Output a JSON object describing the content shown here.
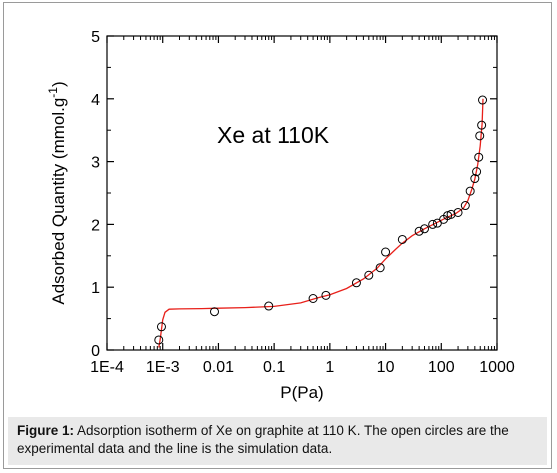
{
  "caption": {
    "label": "Figure 1:",
    "text": " Adsorption isotherm of Xe on graphite at 110 K. The open circles are the experimental data and the line is the simulation data."
  },
  "chart_data": {
    "type": "scatter",
    "x_scale": "log",
    "xlabel": "P(Pa)",
    "ylabel": "Adsorbed Quantity (mmol.g",
    "ylabel_sup": "-1",
    "ylabel_close": ")",
    "xlim": [
      0.0001,
      1000
    ],
    "ylim": [
      0,
      5
    ],
    "x_ticks": [
      {
        "value": 0.0001,
        "label": "1E-4"
      },
      {
        "value": 0.001,
        "label": "1E-3"
      },
      {
        "value": 0.01,
        "label": "0.01"
      },
      {
        "value": 0.1,
        "label": "0.1"
      },
      {
        "value": 1,
        "label": "1"
      },
      {
        "value": 10,
        "label": "10"
      },
      {
        "value": 100,
        "label": "100"
      },
      {
        "value": 1000,
        "label": "1000"
      }
    ],
    "y_ticks": [
      {
        "value": 0,
        "label": "0"
      },
      {
        "value": 1,
        "label": "1"
      },
      {
        "value": 2,
        "label": "2"
      },
      {
        "value": 3,
        "label": "3"
      },
      {
        "value": 4,
        "label": "4"
      },
      {
        "value": 5,
        "label": "5"
      }
    ],
    "annotation": "Xe at 110K",
    "grid": false,
    "series": [
      {
        "kind": "points",
        "marker": "open-circle",
        "color": "#000000",
        "points": [
          [
            0.00085,
            0.16
          ],
          [
            0.00095,
            0.37
          ],
          [
            0.0085,
            0.61
          ],
          [
            0.08,
            0.7
          ],
          [
            0.5,
            0.82
          ],
          [
            0.85,
            0.87
          ],
          [
            3.0,
            1.07
          ],
          [
            5.0,
            1.19
          ],
          [
            8.0,
            1.31
          ],
          [
            10.0,
            1.56
          ],
          [
            20.0,
            1.76
          ],
          [
            40.0,
            1.89
          ],
          [
            50.0,
            1.93
          ],
          [
            70.0,
            2.0
          ],
          [
            85.0,
            2.02
          ],
          [
            110.0,
            2.08
          ],
          [
            130.0,
            2.14
          ],
          [
            150.0,
            2.16
          ],
          [
            200.0,
            2.19
          ],
          [
            270.0,
            2.3
          ],
          [
            330.0,
            2.53
          ],
          [
            400.0,
            2.73
          ],
          [
            430.0,
            2.84
          ],
          [
            470.0,
            3.07
          ],
          [
            490.0,
            3.41
          ],
          [
            530.0,
            3.58
          ],
          [
            550.0,
            3.98
          ]
        ]
      },
      {
        "kind": "line",
        "color": "#e8201a",
        "points": [
          [
            0.00085,
            0.04
          ],
          [
            0.0009,
            0.17
          ],
          [
            0.00095,
            0.33
          ],
          [
            0.001,
            0.48
          ],
          [
            0.0011,
            0.6
          ],
          [
            0.0013,
            0.65
          ],
          [
            0.002,
            0.655
          ],
          [
            0.005,
            0.66
          ],
          [
            0.01,
            0.665
          ],
          [
            0.03,
            0.675
          ],
          [
            0.1,
            0.695
          ],
          [
            0.3,
            0.75
          ],
          [
            0.6,
            0.83
          ],
          [
            1.0,
            0.88
          ],
          [
            2.0,
            0.98
          ],
          [
            4.0,
            1.13
          ],
          [
            7.0,
            1.3
          ],
          [
            10.0,
            1.45
          ],
          [
            15.0,
            1.6
          ],
          [
            20.0,
            1.7
          ],
          [
            30.0,
            1.82
          ],
          [
            50.0,
            1.93
          ],
          [
            80.0,
            2.02
          ],
          [
            120.0,
            2.1
          ],
          [
            180.0,
            2.17
          ],
          [
            250.0,
            2.26
          ],
          [
            300.0,
            2.38
          ],
          [
            350.0,
            2.55
          ],
          [
            400.0,
            2.72
          ],
          [
            450.0,
            2.95
          ],
          [
            500.0,
            3.25
          ],
          [
            540.0,
            3.6
          ],
          [
            560.0,
            4.0
          ]
        ]
      }
    ]
  }
}
